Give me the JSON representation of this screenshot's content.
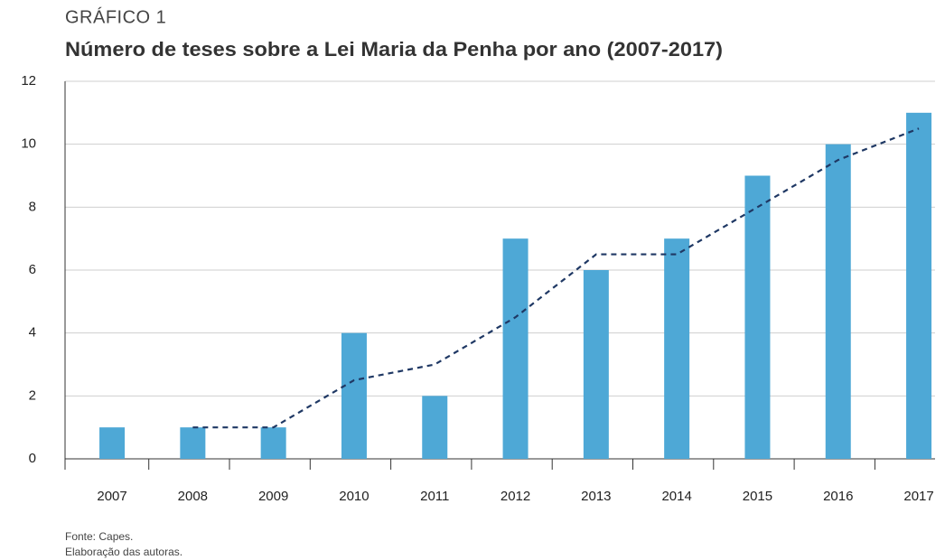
{
  "chart_data": {
    "type": "bar",
    "kicker": "GRÁFICO 1",
    "title": "Número de teses sobre a Lei Maria da Penha por ano (2007-2017)",
    "categories": [
      "2007",
      "2008",
      "2009",
      "2010",
      "2011",
      "2012",
      "2013",
      "2014",
      "2015",
      "2016",
      "2017"
    ],
    "series": [
      {
        "type": "bar",
        "color": "#4ea8d6",
        "values": [
          1,
          1,
          1,
          4,
          2,
          7,
          6,
          7,
          9,
          10,
          11
        ]
      },
      {
        "type": "line",
        "color": "#1f3864",
        "dashed": true,
        "values": [
          null,
          1,
          1,
          2.5,
          3,
          4.5,
          6.5,
          6.5,
          8,
          9.5,
          10.5
        ]
      }
    ],
    "ylim": [
      0,
      12
    ],
    "yticks": [
      0,
      2,
      4,
      6,
      8,
      10,
      12
    ],
    "grid": true,
    "notes": [
      "Fonte: Capes.",
      "Elaboração das autoras."
    ]
  }
}
